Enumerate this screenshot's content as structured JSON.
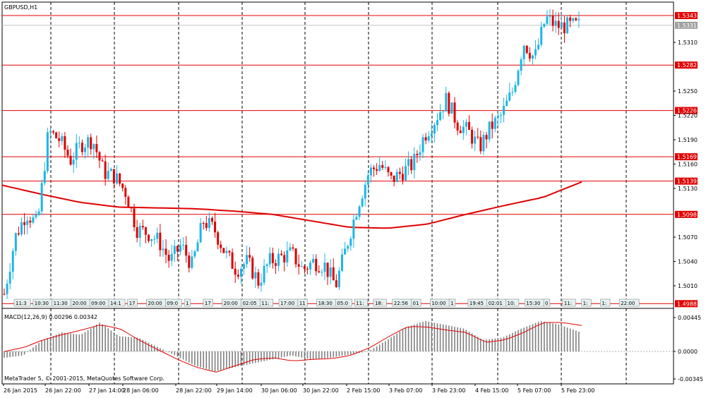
{
  "chart_title": "GBPUSD,H1",
  "macd_title": "MACD(12,26,9) 0.00296 0.00342",
  "copyright": "MetaTrader 5, © 2001-2015, MetaQuotes Software Corp.",
  "colors": {
    "bull": "#1fb4e6",
    "bear": "#e00000",
    "ma": "#e00000",
    "level": "#e00000",
    "grid": "#000000",
    "hist": "#808080",
    "signal": "#e00000",
    "current": "#c0c0c0"
  },
  "chart_data": [
    {
      "type": "candlestick",
      "symbol": "GBPUSD",
      "timeframe": "H1",
      "ylim": [
        1.4975,
        1.5355
      ],
      "yticks": [
        "1.5310",
        "1.5250",
        "1.5220",
        "1.5190",
        "1.5160",
        "1.5130",
        "1.5070",
        "1.5040",
        "1.5010"
      ],
      "x_ticks": [
        "26 Jan 2015",
        "26 Jan 22:00",
        "27 Jan 14:00",
        "28 Jan 06:00",
        "28 Jan 22:00",
        "29 Jan 14:00",
        "30 Jan 06:00",
        "30 Jan 22:00",
        "2 Feb 15:00",
        "3 Feb 07:00",
        "3 Feb 23:00",
        "4 Feb 15:00",
        "5 Feb 07:00",
        "5 Feb 23:00"
      ],
      "current_price": "1.5331",
      "levels": [
        "1.5343",
        "1.5282",
        "1.5226",
        "1.5169",
        "1.5139",
        "1.5098",
        "1.4988"
      ],
      "moving_average_shape": [
        1.5134,
        1.5123,
        1.5113,
        1.5107,
        1.5106,
        1.5105,
        1.5102,
        1.5098,
        1.509,
        1.5082,
        1.5081,
        1.5086,
        1.5098,
        1.5109,
        1.5119,
        1.5138
      ],
      "close_shape": [
        1.5,
        1.507,
        1.51,
        1.5085,
        1.52,
        1.519,
        1.5165,
        1.5185,
        1.519,
        1.515,
        1.5145,
        1.5125,
        1.508,
        1.5075,
        1.5065,
        1.504,
        1.506,
        1.5035,
        1.509,
        1.508,
        1.505,
        1.503,
        1.504,
        1.5015,
        1.504,
        1.5045,
        1.505,
        1.503,
        1.504,
        1.5035,
        1.501,
        1.506,
        1.511,
        1.515,
        1.516,
        1.514,
        1.515,
        1.516,
        1.5195,
        1.5215,
        1.524,
        1.521,
        1.52,
        1.518,
        1.5205,
        1.522,
        1.525,
        1.531,
        1.529,
        1.534,
        1.533,
        1.533,
        1.5331
      ],
      "time_labels": [
        "11:3",
        "10:30",
        "11:30",
        "20:00",
        "09:00",
        "14:1",
        "17",
        "20:00",
        "09:0",
        "1",
        "17",
        "20:00",
        "02:05",
        "11:",
        "17:00",
        "11",
        "18:30",
        "05:0",
        "11:",
        "18:",
        "22:56",
        "01",
        "10:00",
        "1",
        "19:45",
        "02:01",
        "10:",
        "15:30",
        "0",
        "11:",
        "1:",
        "1:",
        "22:00"
      ]
    },
    {
      "type": "bar+line",
      "name": "MACD(12,26,9)",
      "main_value": "0.00296",
      "signal_value": "0.00342",
      "yticks": [
        "0.00445",
        "0.0000",
        "-0.00345"
      ],
      "ylim": [
        -0.00345,
        0.00445
      ],
      "histogram_shape": [
        -0.0008,
        -0.0005,
        0.0015,
        0.0025,
        0.0022,
        0.0038,
        0.002,
        0.0018,
        0.0006,
        -0.0006,
        -0.0018,
        -0.0025,
        -0.002,
        -0.0015,
        -0.001,
        -0.0005,
        -0.001,
        -0.0008,
        -0.0004,
        0.0,
        0.0015,
        0.0032,
        0.004,
        0.0035,
        0.003,
        0.0015,
        0.0018,
        0.003,
        0.004,
        0.0035,
        0.0026
      ],
      "signal_shape": [
        0.0,
        0.0005,
        0.0015,
        0.0022,
        0.0028,
        0.0035,
        0.003,
        0.0015,
        0.0002,
        -0.001,
        -0.002,
        -0.0026,
        -0.0018,
        -0.001,
        -0.0008,
        -0.0012,
        -0.001,
        -0.0009,
        -0.0005,
        0.0005,
        0.002,
        0.0033,
        0.0032,
        0.0028,
        0.0025,
        0.0012,
        0.0015,
        0.0025,
        0.0038,
        0.0038,
        0.0034
      ]
    }
  ]
}
